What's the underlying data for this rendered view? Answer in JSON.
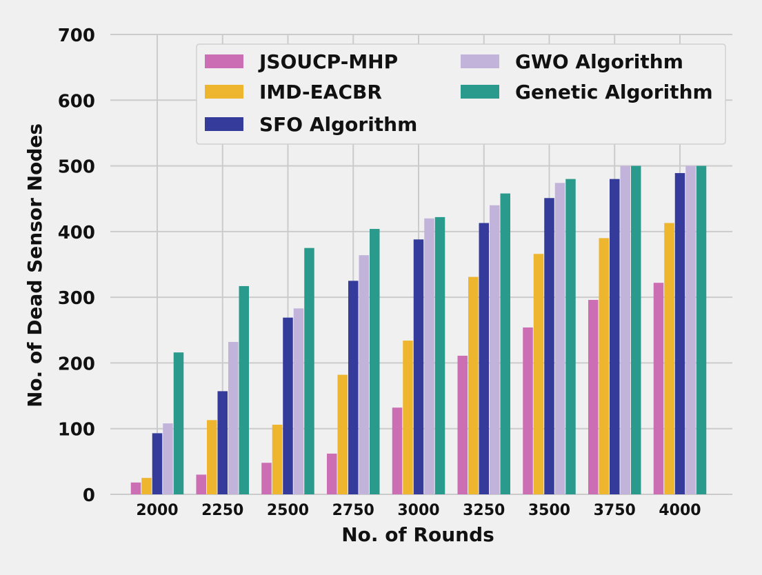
{
  "chart_data": {
    "type": "bar",
    "title": "",
    "xlabel": "No. of Rounds",
    "ylabel": "No. of Dead Sensor Nodes",
    "categories": [
      "2000",
      "2250",
      "2500",
      "2750",
      "3000",
      "3250",
      "3500",
      "3750",
      "4000"
    ],
    "ylim": [
      0,
      700
    ],
    "yticks": [
      0,
      100,
      200,
      300,
      400,
      500,
      600,
      700
    ],
    "grid": true,
    "legend_position": "top-right",
    "series": [
      {
        "name": "JSOUCP-MHP",
        "color": "#cc6eb4",
        "values": [
          18,
          30,
          48,
          62,
          132,
          211,
          254,
          296,
          322
        ]
      },
      {
        "name": "IMD-EACBR",
        "color": "#eeb52f",
        "values": [
          25,
          113,
          106,
          182,
          234,
          331,
          366,
          390,
          413
        ]
      },
      {
        "name": "SFO Algorithm",
        "color": "#353b9a",
        "values": [
          93,
          157,
          269,
          325,
          388,
          413,
          451,
          480,
          489
        ]
      },
      {
        "name": "GWO Algorithm",
        "color": "#c2b3da",
        "values": [
          108,
          232,
          283,
          364,
          420,
          440,
          474,
          500,
          500
        ]
      },
      {
        "name": "Genetic Algorithm",
        "color": "#2a9a8c",
        "values": [
          216,
          317,
          375,
          404,
          422,
          458,
          480,
          500,
          500
        ]
      }
    ]
  }
}
